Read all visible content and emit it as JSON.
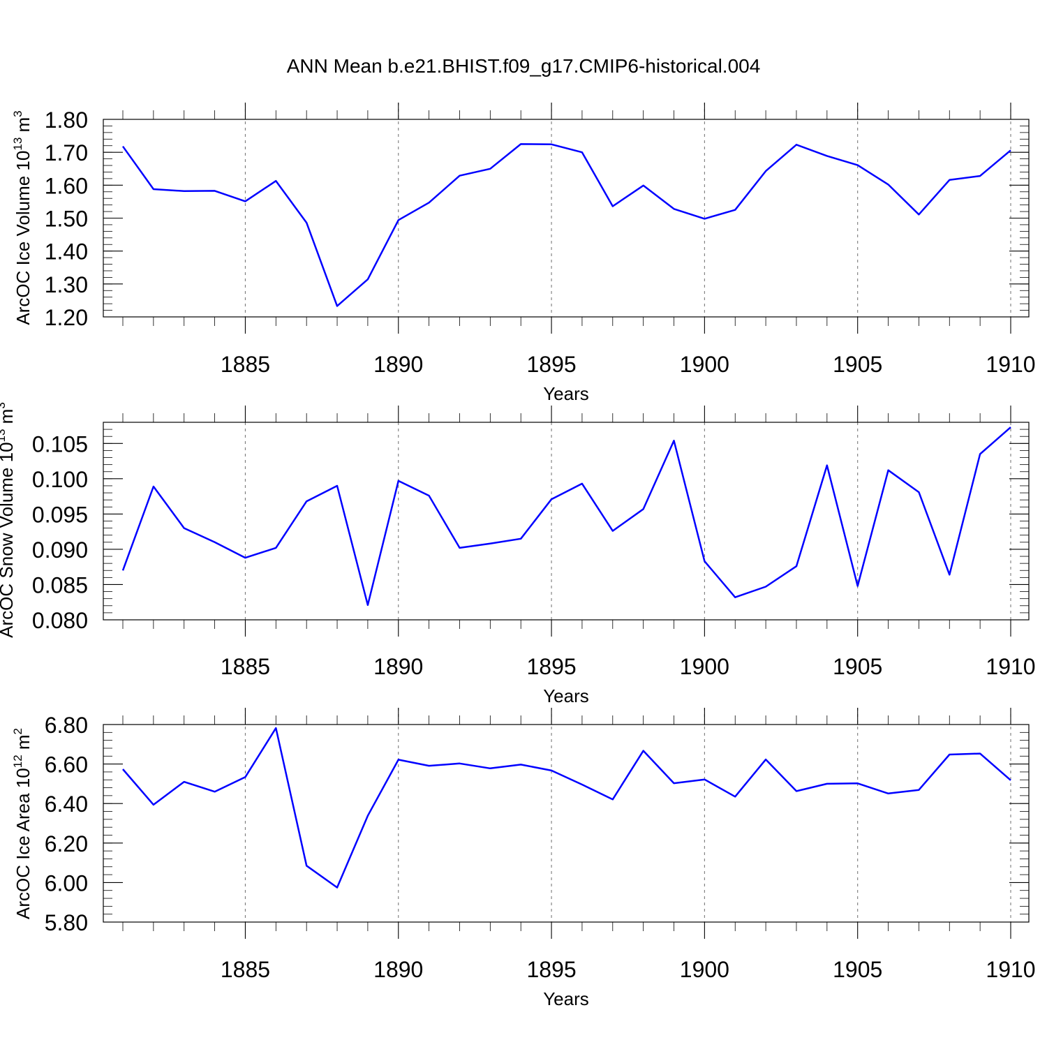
{
  "figure_title": "ANN Mean b.e21.BHIST.f09_g17.CMIP6-historical.004",
  "line_color": "#0000ff",
  "chart_data": [
    {
      "type": "line",
      "ylabel": "ArcOC Ice Volume 10",
      "ylabel_exp": "13",
      "ylabel_unit": " m",
      "ylabel_unit_exp": "3",
      "xlabel": "Years",
      "xlim": [
        1881,
        1910
      ],
      "ylim": [
        1.2,
        1.8
      ],
      "yticks": [
        1.2,
        1.3,
        1.4,
        1.5,
        1.6,
        1.7,
        1.8
      ],
      "ytick_labels": [
        "1.20",
        "1.30",
        "1.40",
        "1.50",
        "1.60",
        "1.70",
        "1.80"
      ],
      "yminor_step": 0.02,
      "xticks": [
        1885,
        1890,
        1895,
        1900,
        1905,
        1910
      ],
      "xtick_labels": [
        "1885",
        "1890",
        "1895",
        "1900",
        "1905",
        "1910"
      ],
      "grid": "vertical dashed at major x ticks",
      "x": [
        1881,
        1882,
        1883,
        1884,
        1885,
        1886,
        1887,
        1888,
        1889,
        1890,
        1891,
        1892,
        1893,
        1894,
        1895,
        1896,
        1897,
        1898,
        1899,
        1900,
        1901,
        1902,
        1903,
        1904,
        1905,
        1906,
        1907,
        1908,
        1909,
        1910
      ],
      "values": [
        1.718,
        1.588,
        1.582,
        1.583,
        1.551,
        1.613,
        1.486,
        1.233,
        1.314,
        1.494,
        1.547,
        1.629,
        1.65,
        1.725,
        1.724,
        1.7,
        1.536,
        1.599,
        1.528,
        1.498,
        1.525,
        1.643,
        1.723,
        1.689,
        1.661,
        1.602,
        1.511,
        1.616,
        1.628,
        1.706
      ]
    },
    {
      "type": "line",
      "ylabel": "ArcOC Snow Volume 10",
      "ylabel_exp": "13",
      "ylabel_unit": " m",
      "ylabel_unit_exp": "3",
      "xlabel": "Years",
      "xlim": [
        1881,
        1910
      ],
      "ylim": [
        0.08,
        0.108
      ],
      "yticks": [
        0.08,
        0.085,
        0.09,
        0.095,
        0.1,
        0.105
      ],
      "ytick_labels": [
        "0.080",
        "0.085",
        "0.090",
        "0.095",
        "0.100",
        "0.105"
      ],
      "yminor_step": 0.001,
      "xticks": [
        1885,
        1890,
        1895,
        1900,
        1905,
        1910
      ],
      "xtick_labels": [
        "1885",
        "1890",
        "1895",
        "1900",
        "1905",
        "1910"
      ],
      "grid": "vertical dashed at major x ticks",
      "x": [
        1881,
        1882,
        1883,
        1884,
        1885,
        1886,
        1887,
        1888,
        1889,
        1890,
        1891,
        1892,
        1893,
        1894,
        1895,
        1896,
        1897,
        1898,
        1899,
        1900,
        1901,
        1902,
        1903,
        1904,
        1905,
        1906,
        1907,
        1908,
        1909,
        1910
      ],
      "values": [
        0.087,
        0.0989,
        0.093,
        0.091,
        0.0888,
        0.0902,
        0.0968,
        0.099,
        0.0821,
        0.0997,
        0.0976,
        0.0902,
        0.0908,
        0.0915,
        0.0971,
        0.0993,
        0.0926,
        0.0957,
        0.1054,
        0.0883,
        0.0832,
        0.0847,
        0.0876,
        0.1019,
        0.0848,
        0.1012,
        0.0981,
        0.0864,
        0.1035,
        0.1073
      ]
    },
    {
      "type": "line",
      "ylabel": "ArcOC Ice Area 10",
      "ylabel_exp": "12",
      "ylabel_unit": " m",
      "ylabel_unit_exp": "2",
      "xlabel": "Years",
      "xlim": [
        1881,
        1910
      ],
      "ylim": [
        5.8,
        6.8
      ],
      "yticks": [
        5.8,
        6.0,
        6.2,
        6.4,
        6.6,
        6.8
      ],
      "ytick_labels": [
        "5.80",
        "6.00",
        "6.20",
        "6.40",
        "6.60",
        "6.80"
      ],
      "yminor_step": 0.04,
      "xticks": [
        1885,
        1890,
        1895,
        1900,
        1905,
        1910
      ],
      "xtick_labels": [
        "1885",
        "1890",
        "1895",
        "1900",
        "1905",
        "1910"
      ],
      "grid": "vertical dashed at major x ticks",
      "x": [
        1881,
        1882,
        1883,
        1884,
        1885,
        1886,
        1887,
        1888,
        1889,
        1890,
        1891,
        1892,
        1893,
        1894,
        1895,
        1896,
        1897,
        1898,
        1899,
        1900,
        1901,
        1902,
        1903,
        1904,
        1905,
        1906,
        1907,
        1908,
        1909,
        1910
      ],
      "values": [
        6.574,
        6.394,
        6.51,
        6.46,
        6.534,
        6.782,
        6.085,
        5.975,
        6.338,
        6.622,
        6.591,
        6.603,
        6.578,
        6.597,
        6.567,
        6.496,
        6.421,
        6.667,
        6.503,
        6.522,
        6.435,
        6.623,
        6.463,
        6.5,
        6.502,
        6.451,
        6.469,
        6.648,
        6.653,
        6.518
      ]
    }
  ]
}
